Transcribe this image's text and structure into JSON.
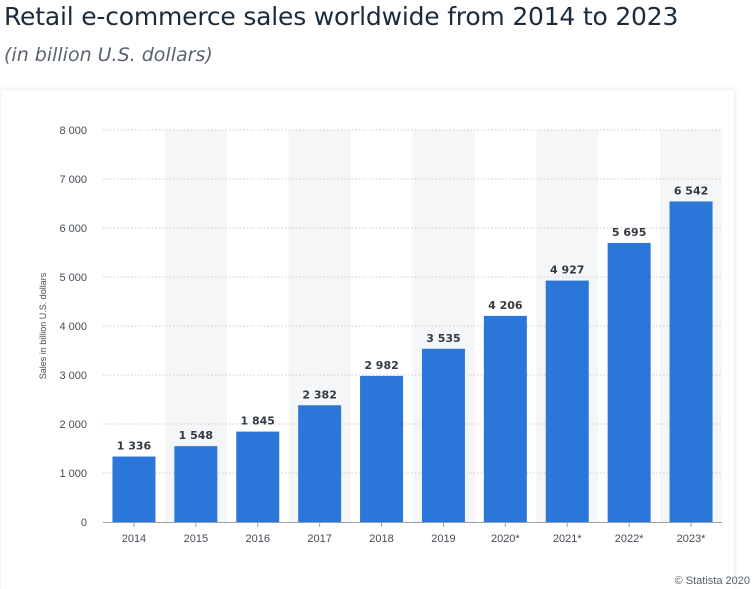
{
  "title": "Retail e-commerce sales worldwide from 2014 to 2023",
  "subtitle": "(in billion U.S. dollars)",
  "credit": "© Statista 2020",
  "colors": {
    "bar": "#2a77d9",
    "band": "#f5f6f8",
    "grid": "#c8ccd0",
    "axis_text": "#444c55",
    "label_text": "#333a42"
  },
  "chart_data": {
    "type": "bar",
    "categories": [
      "2014",
      "2015",
      "2016",
      "2017",
      "2018",
      "2019",
      "2020*",
      "2021*",
      "2022*",
      "2023*"
    ],
    "values": [
      1336,
      1548,
      1845,
      2382,
      2982,
      3535,
      4206,
      4927,
      5695,
      6542
    ],
    "value_labels": [
      "1 336",
      "1 548",
      "1 845",
      "2 382",
      "2 982",
      "3 535",
      "4 206",
      "4 927",
      "5 695",
      "6 542"
    ],
    "title": "Retail e-commerce sales worldwide from 2014 to 2023",
    "xlabel": "",
    "ylabel": "Sales in billion U.S. dollars",
    "ylim": [
      0,
      8000
    ],
    "yticks": [
      0,
      1000,
      2000,
      3000,
      4000,
      5000,
      6000,
      7000,
      8000
    ],
    "ytick_labels": [
      "0",
      "1 000",
      "2 000",
      "3 000",
      "4 000",
      "5 000",
      "6 000",
      "7 000",
      "8 000"
    ],
    "grid": true,
    "legend": "none"
  }
}
